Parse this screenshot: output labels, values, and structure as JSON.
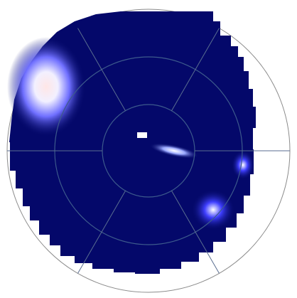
{
  "chart_data": {
    "type": "polar-heatmap",
    "grid": true
  }
}
